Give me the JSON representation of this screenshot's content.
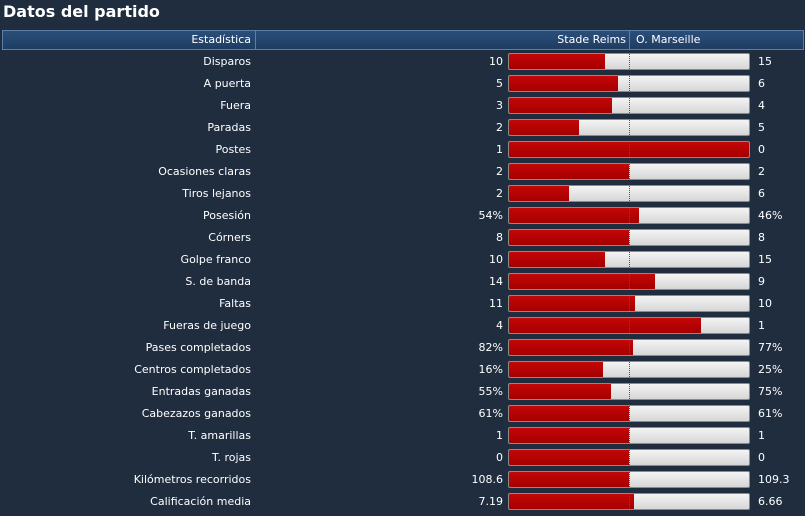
{
  "title": "Datos del partido",
  "header": {
    "stat_col": "Estadística",
    "home_team": "Stade Reims",
    "away_team": "O. Marseille"
  },
  "colors": {
    "home_bar": "#b30000",
    "away_bar": "#e6e6e6",
    "background": "#1f2d3f",
    "header": "#244670"
  },
  "stats": [
    {
      "label": "Disparos",
      "home": "10",
      "away": "15",
      "home_share": 0.4
    },
    {
      "label": "A puerta",
      "home": "5",
      "away": "6",
      "home_share": 0.455
    },
    {
      "label": "Fuera",
      "home": "3",
      "away": "4",
      "home_share": 0.43
    },
    {
      "label": "Paradas",
      "home": "2",
      "away": "5",
      "home_share": 0.29
    },
    {
      "label": "Postes",
      "home": "1",
      "away": "0",
      "home_share": 1.0
    },
    {
      "label": "Ocasiones claras",
      "home": "2",
      "away": "2",
      "home_share": 0.5
    },
    {
      "label": "Tiros lejanos",
      "home": "2",
      "away": "6",
      "home_share": 0.25
    },
    {
      "label": "Posesión",
      "home": "54%",
      "away": "46%",
      "home_share": 0.54
    },
    {
      "label": "Córners",
      "home": "8",
      "away": "8",
      "home_share": 0.5
    },
    {
      "label": "Golpe franco",
      "home": "10",
      "away": "15",
      "home_share": 0.4
    },
    {
      "label": "S. de banda",
      "home": "14",
      "away": "9",
      "home_share": 0.61
    },
    {
      "label": "Faltas",
      "home": "11",
      "away": "10",
      "home_share": 0.524
    },
    {
      "label": "Fueras de juego",
      "home": "4",
      "away": "1",
      "home_share": 0.8
    },
    {
      "label": "Pases completados",
      "home": "82%",
      "away": "77%",
      "home_share": 0.516
    },
    {
      "label": "Centros completados",
      "home": "16%",
      "away": "25%",
      "home_share": 0.39
    },
    {
      "label": "Entradas ganadas",
      "home": "55%",
      "away": "75%",
      "home_share": 0.423
    },
    {
      "label": "Cabezazos ganados",
      "home": "61%",
      "away": "61%",
      "home_share": 0.5
    },
    {
      "label": "T. amarillas",
      "home": "1",
      "away": "1",
      "home_share": 0.5
    },
    {
      "label": "T. rojas",
      "home": "0",
      "away": "0",
      "home_share": 0.5
    },
    {
      "label": "Kilómetros recorridos",
      "home": "108.6",
      "away": "109.3",
      "home_share": 0.498
    },
    {
      "label": "Calificación media",
      "home": "7.19",
      "away": "6.66",
      "home_share": 0.519
    }
  ]
}
